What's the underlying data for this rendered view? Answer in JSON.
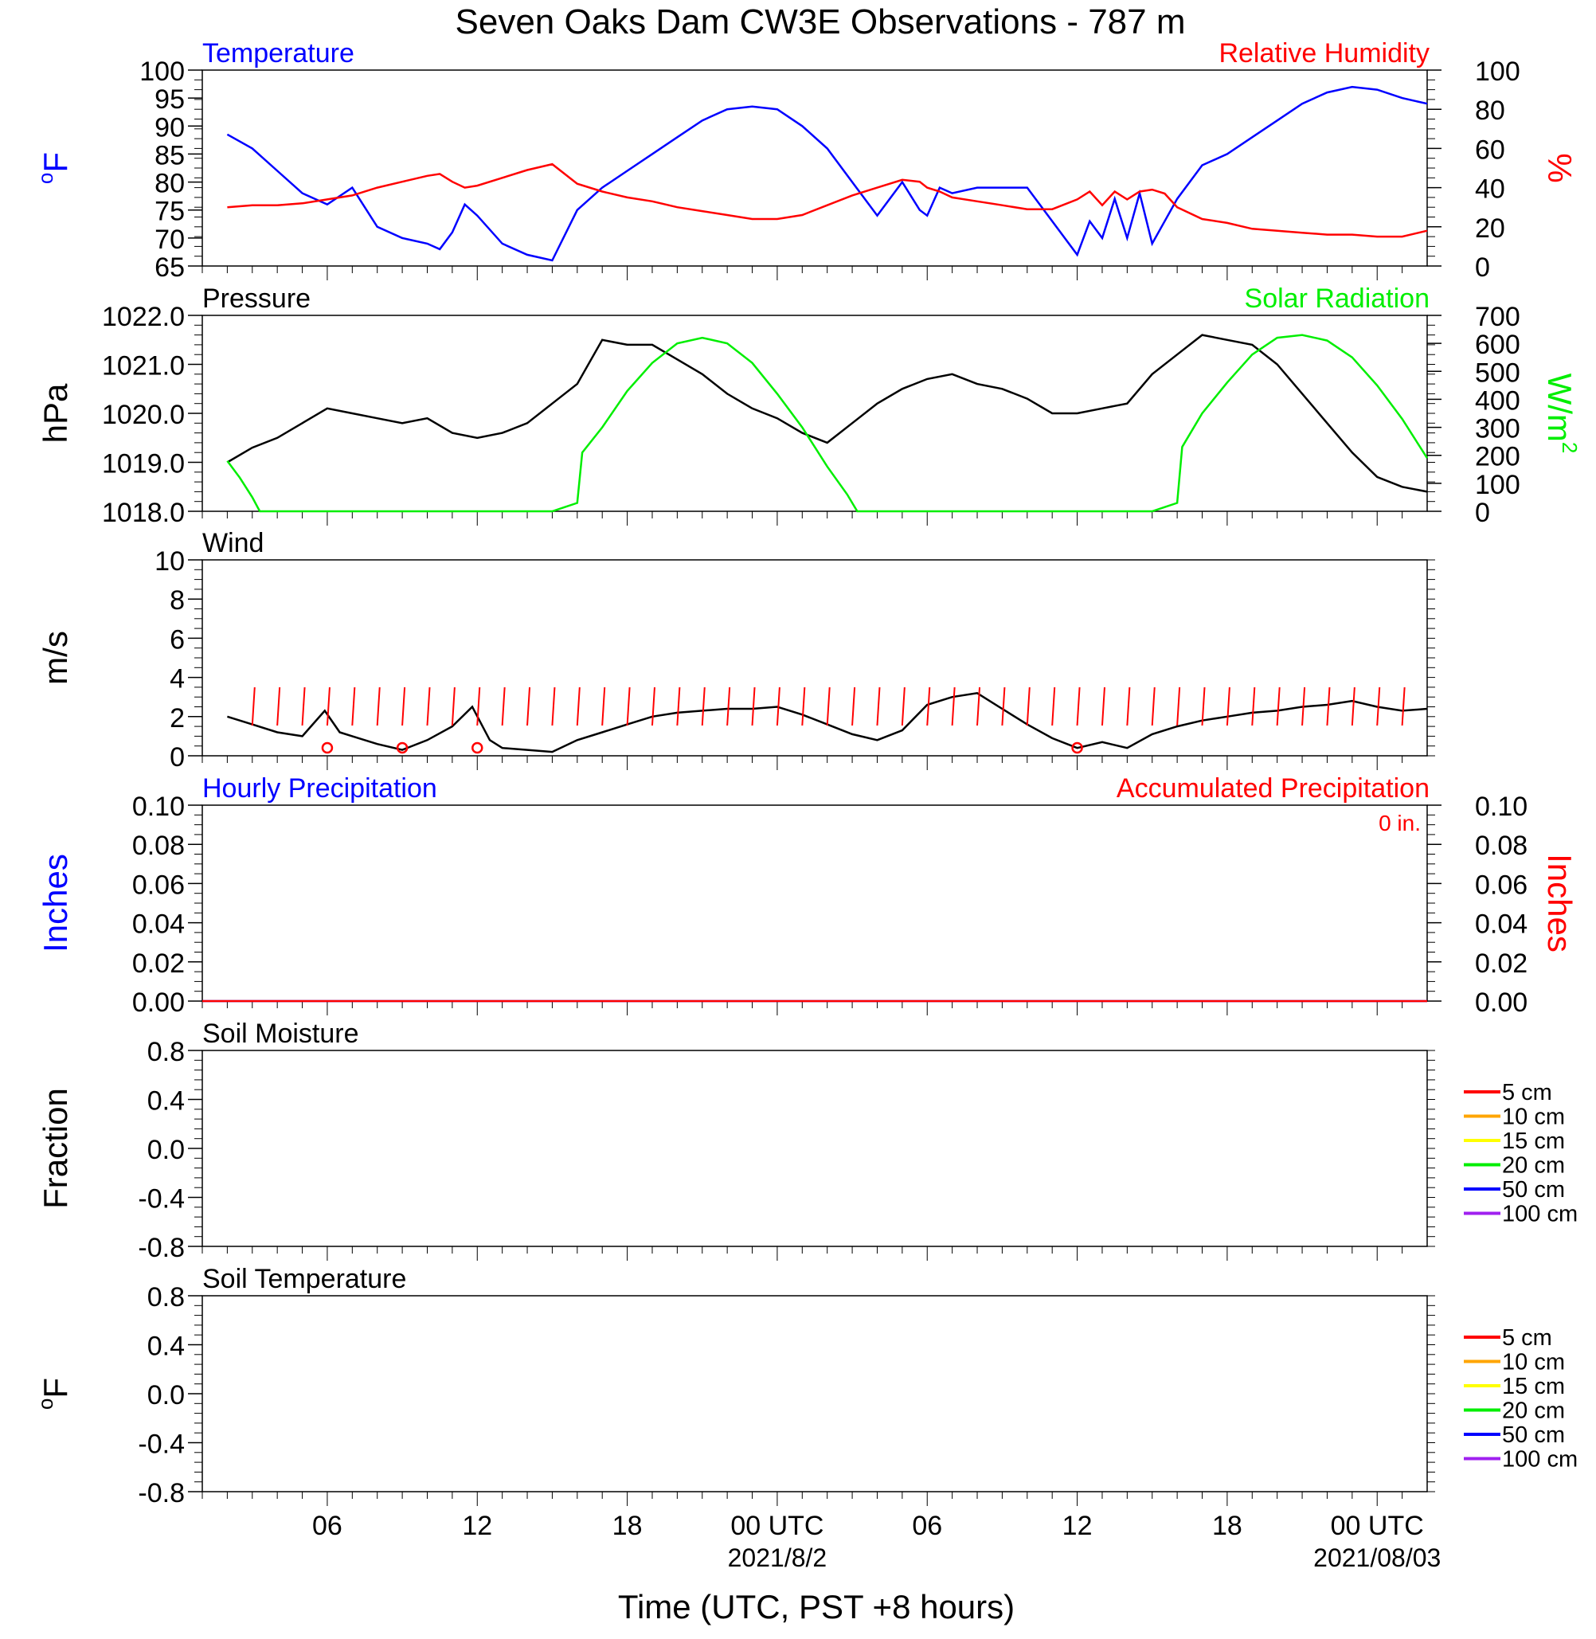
{
  "title": "Seven Oaks Dam CW3E Observations - 787 m",
  "xlabel": "Time (UTC, PST +8 hours)",
  "x_ticks": [
    "06",
    "12",
    "18",
    "00 UTC",
    "06",
    "12",
    "18",
    "00 UTC"
  ],
  "x_dates": [
    "2021/8/2",
    "2021/08/03"
  ],
  "colors": {
    "red": "#ff0000",
    "blue": "#0000ff",
    "green": "#00ee00",
    "black": "#000000"
  },
  "chart_data": [
    {
      "type": "line",
      "panel": "temperature_humidity",
      "left_title": "Temperature",
      "right_title": "Relative Humidity",
      "ylabel_left": "oF",
      "ylabel_right": "%",
      "ylim_left": [
        65,
        100
      ],
      "ylim_right": [
        0,
        100
      ],
      "yticks_left": [
        "100",
        "95",
        "90",
        "85",
        "80",
        "75",
        "70",
        "65"
      ],
      "yticks_right": [
        "100",
        "80",
        "60",
        "40",
        "20",
        "0"
      ],
      "x_hours": [
        1,
        2,
        3,
        4,
        5,
        6,
        7,
        8,
        9,
        9.5,
        10,
        10.5,
        11,
        12,
        13,
        14,
        15,
        16,
        17,
        18,
        19,
        20,
        21,
        22,
        23,
        24,
        25,
        26,
        27,
        28,
        28.7,
        29,
        29.5,
        30,
        31,
        32,
        33,
        34,
        35,
        35.5,
        36,
        36.5,
        37,
        37.5,
        38,
        38.5,
        39,
        40,
        41,
        42,
        43,
        44,
        45,
        46,
        47,
        48,
        49
      ],
      "series": [
        {
          "name": "Temperature",
          "color": "#0000ff",
          "axis": "left",
          "values": [
            88.5,
            86,
            82,
            78,
            76,
            79,
            72,
            70,
            69,
            68,
            71,
            76,
            74,
            69,
            67,
            66,
            75,
            79,
            82,
            85,
            88,
            91,
            93,
            93.5,
            93,
            90,
            86,
            80,
            74,
            80,
            75,
            74,
            79,
            78,
            79,
            79,
            79,
            73,
            67,
            73,
            70,
            77,
            70,
            78,
            69,
            73,
            77,
            83,
            85,
            88,
            91,
            94,
            96,
            97,
            96.5,
            95,
            94
          ]
        },
        {
          "name": "Relative Humidity",
          "color": "#ff0000",
          "axis": "right",
          "values": [
            30,
            31,
            31,
            32,
            34,
            36,
            40,
            43,
            46,
            47,
            43,
            40,
            41,
            45,
            49,
            52,
            42,
            38,
            35,
            33,
            30,
            28,
            26,
            24,
            24,
            26,
            31,
            36,
            40,
            44,
            43,
            40,
            38,
            35,
            33,
            31,
            29,
            29,
            34,
            38,
            31,
            38,
            34,
            38,
            39,
            37,
            30,
            24,
            22,
            19,
            18,
            17,
            16,
            16,
            15,
            15,
            18
          ]
        }
      ]
    },
    {
      "type": "line",
      "panel": "pressure_solar",
      "left_title": "Pressure",
      "right_title": "Solar Radiation",
      "ylabel_left": "hPa",
      "ylabel_right": "W/m2",
      "ylim_left": [
        1018.0,
        1022.0
      ],
      "ylim_right": [
        0,
        700
      ],
      "yticks_left": [
        "1022.0",
        "1021.0",
        "1020.0",
        "1019.0",
        "1018.0"
      ],
      "yticks_right": [
        "700",
        "600",
        "500",
        "400",
        "300",
        "200",
        "100",
        "0"
      ],
      "series": [
        {
          "name": "Pressure",
          "color": "#000000",
          "axis": "left",
          "x_hours": [
            1,
            2,
            3,
            4,
            5,
            6,
            7,
            8,
            9,
            10,
            11,
            12,
            13,
            14,
            15,
            16,
            17,
            18,
            19,
            20,
            21,
            22,
            23,
            24,
            25,
            26,
            27,
            28,
            29,
            30,
            31,
            32,
            33,
            34,
            35,
            36,
            37,
            38,
            39,
            40,
            41,
            42,
            43,
            44,
            45,
            46,
            47,
            48,
            49
          ],
          "values": [
            1019.0,
            1019.3,
            1019.5,
            1019.8,
            1020.1,
            1020.0,
            1019.9,
            1019.8,
            1019.9,
            1019.6,
            1019.5,
            1019.6,
            1019.8,
            1020.2,
            1020.6,
            1021.5,
            1021.4,
            1021.4,
            1021.1,
            1020.8,
            1020.4,
            1020.1,
            1019.9,
            1019.6,
            1019.4,
            1019.8,
            1020.2,
            1020.5,
            1020.7,
            1020.8,
            1020.6,
            1020.5,
            1020.3,
            1020.0,
            1020.0,
            1020.1,
            1020.2,
            1020.8,
            1021.2,
            1021.6,
            1021.5,
            1021.4,
            1021.0,
            1020.4,
            1019.8,
            1019.2,
            1018.7,
            1018.5,
            1018.4
          ]
        },
        {
          "name": "Solar Radiation",
          "color": "#00ee00",
          "axis": "right",
          "x_hours": [
            1,
            1.5,
            2,
            2.3,
            14,
            15,
            15.2,
            16,
            17,
            18,
            19,
            20,
            21,
            22,
            23,
            24,
            25,
            25.8,
            26.2,
            38,
            39,
            39.2,
            40,
            41,
            42,
            43,
            44,
            45,
            46,
            47,
            48,
            49
          ],
          "values": [
            180,
            120,
            50,
            0,
            0,
            30,
            210,
            300,
            430,
            530,
            600,
            620,
            600,
            530,
            420,
            300,
            160,
            60,
            0,
            0,
            30,
            230,
            350,
            460,
            560,
            620,
            630,
            610,
            550,
            450,
            330,
            190
          ]
        }
      ]
    },
    {
      "type": "line",
      "panel": "wind",
      "left_title": "Wind",
      "ylabel_left": "m/s",
      "ylim_left": [
        0,
        10
      ],
      "yticks_left": [
        "10",
        "8",
        "6",
        "4",
        "2",
        "0"
      ],
      "x_hours": [
        1,
        2,
        3,
        4,
        4.9,
        5.5,
        6,
        7,
        8,
        9,
        10,
        10.8,
        11.5,
        12,
        13,
        14,
        15,
        16,
        17,
        18,
        19,
        20,
        21,
        22,
        23,
        24,
        25,
        26,
        27,
        28,
        29,
        30,
        31,
        32,
        33,
        34,
        35,
        36,
        37,
        38,
        39,
        40,
        41,
        42,
        43,
        44,
        45,
        46,
        47,
        48,
        49
      ],
      "series": [
        {
          "name": "Wind",
          "color": "#000000",
          "values": [
            2.0,
            1.6,
            1.2,
            1.0,
            2.3,
            1.2,
            1.0,
            0.6,
            0.3,
            0.8,
            1.5,
            2.5,
            0.8,
            0.4,
            0.3,
            0.2,
            0.8,
            1.2,
            1.6,
            2.0,
            2.2,
            2.3,
            2.4,
            2.4,
            2.5,
            2.1,
            1.6,
            1.1,
            0.8,
            1.3,
            2.6,
            3.0,
            3.2,
            2.4,
            1.6,
            0.9,
            0.4,
            0.7,
            0.4,
            1.1,
            1.5,
            1.8,
            2.0,
            2.2,
            2.3,
            2.5,
            2.6,
            2.8,
            2.5,
            2.3,
            2.4
          ]
        }
      ],
      "calm_markers_hours": [
        5,
        8,
        11,
        35
      ]
    },
    {
      "type": "line",
      "panel": "precipitation",
      "left_title": "Hourly Precipitation",
      "right_title": "Accumulated Precipitation",
      "annotation": "0 in.",
      "ylabel_left": "Inches",
      "ylabel_right": "Inches",
      "ylim_left": [
        0,
        0.1
      ],
      "ylim_right": [
        0,
        0.1
      ],
      "yticks_left": [
        "0.10",
        "0.08",
        "0.06",
        "0.04",
        "0.02",
        "0.00"
      ],
      "yticks_right": [
        "0.10",
        "0.08",
        "0.06",
        "0.04",
        "0.02",
        "0.00"
      ],
      "series": [
        {
          "name": "Hourly Precipitation",
          "color": "#0000ff",
          "x_hours": [
            0,
            49
          ],
          "values": [
            0,
            0
          ]
        },
        {
          "name": "Accumulated Precipitation",
          "color": "#ff0000",
          "x_hours": [
            0,
            49
          ],
          "values": [
            0,
            0
          ]
        }
      ]
    },
    {
      "type": "line",
      "panel": "soil_moisture",
      "left_title": "Soil Moisture",
      "ylabel_left": "Fraction",
      "ylim_left": [
        -1.0,
        1.0
      ],
      "yticks_left": [
        "0.8",
        "0.4",
        "0.0",
        "-0.4",
        "-0.8"
      ],
      "legend": [
        {
          "label": "5 cm",
          "color": "#ff0000"
        },
        {
          "label": "10 cm",
          "color": "#ffa500"
        },
        {
          "label": "15 cm",
          "color": "#ffff00"
        },
        {
          "label": "20 cm",
          "color": "#00ee00"
        },
        {
          "label": "50 cm",
          "color": "#0000ff"
        },
        {
          "label": "100 cm",
          "color": "#a020f0"
        }
      ]
    },
    {
      "type": "line",
      "panel": "soil_temperature",
      "left_title": "Soil Temperature",
      "ylabel_left": "oF",
      "ylim_left": [
        -1.0,
        1.0
      ],
      "yticks_left": [
        "0.8",
        "0.4",
        "0.0",
        "-0.4",
        "-0.8"
      ],
      "legend": [
        {
          "label": "5 cm",
          "color": "#ff0000"
        },
        {
          "label": "10 cm",
          "color": "#ffa500"
        },
        {
          "label": "15 cm",
          "color": "#ffff00"
        },
        {
          "label": "20 cm",
          "color": "#00ee00"
        },
        {
          "label": "50 cm",
          "color": "#0000ff"
        },
        {
          "label": "100 cm",
          "color": "#a020f0"
        }
      ]
    }
  ]
}
